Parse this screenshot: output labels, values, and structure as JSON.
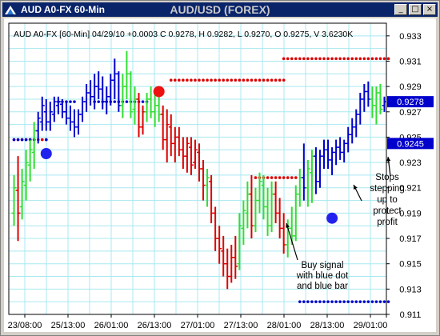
{
  "window": {
    "title": "AUD A0-FX 60-Min",
    "chart_title": "AUD/USD (FOREX)",
    "buttons": [
      "_",
      "□",
      "×"
    ]
  },
  "chart_data": {
    "type": "ohlc",
    "info_line": "AUD A0-FX [60-Min] 04/29/10  +0.0003 C 0.9278, H 0.9282, L 0.9270, O 0.9275, V 3.6230K",
    "ylim": [
      0.911,
      0.934
    ],
    "yticks": [
      "0.933",
      "0.931",
      "0.929",
      "0.927",
      "0.925",
      "0.923",
      "0.921",
      "0.919",
      "0.917",
      "0.915",
      "0.913",
      "0.911"
    ],
    "xticks": [
      "23/08:00",
      "25/13:00",
      "26/01:00",
      "26/13:00",
      "27/01:00",
      "27/13:00",
      "28/01:00",
      "28/13:00",
      "29/01:00"
    ],
    "price_labels": [
      {
        "value": 0.9278,
        "text": "0.9278",
        "color": "#0000cc"
      },
      {
        "value": 0.9245,
        "text": "0.9245",
        "color": "#0000cc"
      }
    ],
    "colors": {
      "up": "#0000cc",
      "down": "#dd0000",
      "neutral": "#33dd33",
      "stop": "#0000cc",
      "stop_short": "#dd0000",
      "grid": "#a8e8f0"
    },
    "bars": [
      [
        0.919,
        0.922,
        0.918,
        0.921,
        "n"
      ],
      [
        0.9208,
        0.9235,
        0.9168,
        0.919,
        "d"
      ],
      [
        0.9195,
        0.9225,
        0.9185,
        0.9215,
        "n"
      ],
      [
        0.9212,
        0.924,
        0.92,
        0.923,
        "n"
      ],
      [
        0.9228,
        0.9248,
        0.9215,
        0.924,
        "n"
      ],
      [
        0.9238,
        0.9262,
        0.9225,
        0.9255,
        "n"
      ],
      [
        0.9255,
        0.927,
        0.9245,
        0.9265,
        "u"
      ],
      [
        0.9262,
        0.9282,
        0.9255,
        0.9275,
        "u"
      ],
      [
        0.927,
        0.928,
        0.9255,
        0.9262,
        "u"
      ],
      [
        0.9262,
        0.9278,
        0.9255,
        0.927,
        "u"
      ],
      [
        0.9268,
        0.9282,
        0.9262,
        0.9278,
        "u"
      ],
      [
        0.9275,
        0.9282,
        0.9268,
        0.9278,
        "u"
      ],
      [
        0.9276,
        0.928,
        0.9265,
        0.927,
        "u"
      ],
      [
        0.927,
        0.9278,
        0.926,
        0.9265,
        "u"
      ],
      [
        0.9265,
        0.9275,
        0.9255,
        0.9262,
        "u"
      ],
      [
        0.9262,
        0.9272,
        0.925,
        0.9258,
        "u"
      ],
      [
        0.9258,
        0.9272,
        0.9252,
        0.9268,
        "u"
      ],
      [
        0.9268,
        0.9282,
        0.9262,
        0.9278,
        "u"
      ],
      [
        0.9278,
        0.9292,
        0.927,
        0.9285,
        "u"
      ],
      [
        0.9285,
        0.9295,
        0.9275,
        0.9282,
        "u"
      ],
      [
        0.9282,
        0.93,
        0.9272,
        0.929,
        "u"
      ],
      [
        0.929,
        0.9302,
        0.928,
        0.9288,
        "u"
      ],
      [
        0.9288,
        0.9298,
        0.9272,
        0.9278,
        "u"
      ],
      [
        0.9278,
        0.929,
        0.9268,
        0.9282,
        "u"
      ],
      [
        0.9282,
        0.93,
        0.9275,
        0.9295,
        "u"
      ],
      [
        0.9295,
        0.9312,
        0.928,
        0.93,
        "u"
      ],
      [
        0.93,
        0.9302,
        0.927,
        0.9275,
        "u"
      ],
      [
        0.9275,
        0.93,
        0.9265,
        0.929,
        "n"
      ],
      [
        0.929,
        0.9318,
        0.928,
        0.93,
        "n"
      ],
      [
        0.93,
        0.9302,
        0.9265,
        0.927,
        "n"
      ],
      [
        0.9272,
        0.929,
        0.926,
        0.928,
        "n"
      ],
      [
        0.928,
        0.9285,
        0.925,
        0.9258,
        "d"
      ],
      [
        0.9258,
        0.9275,
        0.9252,
        0.927,
        "d"
      ],
      [
        0.927,
        0.9285,
        0.9262,
        0.928,
        "n"
      ],
      [
        0.928,
        0.929,
        0.9265,
        0.927,
        "n"
      ],
      [
        0.927,
        0.9285,
        0.9258,
        0.9275,
        "n"
      ],
      [
        0.9275,
        0.9285,
        0.9262,
        0.9268,
        "n"
      ],
      [
        0.9268,
        0.9275,
        0.924,
        0.9248,
        "d"
      ],
      [
        0.9248,
        0.9272,
        0.923,
        0.926,
        "d"
      ],
      [
        0.9258,
        0.9268,
        0.9235,
        0.9245,
        "d"
      ],
      [
        0.9245,
        0.9258,
        0.923,
        0.925,
        "d"
      ],
      [
        0.925,
        0.9258,
        0.9235,
        0.924,
        "d"
      ],
      [
        0.924,
        0.925,
        0.9225,
        0.9235,
        "d"
      ],
      [
        0.9235,
        0.925,
        0.9222,
        0.9245,
        "d"
      ],
      [
        0.9242,
        0.925,
        0.922,
        0.9228,
        "d"
      ],
      [
        0.923,
        0.9248,
        0.9225,
        0.924,
        "d"
      ],
      [
        0.9238,
        0.9245,
        0.9215,
        0.9225,
        "d"
      ],
      [
        0.9225,
        0.9232,
        0.92,
        0.9212,
        "d"
      ],
      [
        0.9212,
        0.9225,
        0.9195,
        0.9218,
        "n"
      ],
      [
        0.9215,
        0.922,
        0.9182,
        0.919,
        "d"
      ],
      [
        0.919,
        0.9195,
        0.916,
        0.917,
        "d"
      ],
      [
        0.917,
        0.918,
        0.915,
        0.9162,
        "d"
      ],
      [
        0.916,
        0.9172,
        0.914,
        0.915,
        "d"
      ],
      [
        0.915,
        0.9162,
        0.913,
        0.914,
        "d"
      ],
      [
        0.914,
        0.9165,
        0.9135,
        0.9155,
        "d"
      ],
      [
        0.9155,
        0.9172,
        0.9138,
        0.9148,
        "d"
      ],
      [
        0.915,
        0.919,
        0.9145,
        0.918,
        "n"
      ],
      [
        0.9178,
        0.92,
        0.9165,
        0.9192,
        "n"
      ],
      [
        0.919,
        0.9215,
        0.9178,
        0.9205,
        "n"
      ],
      [
        0.9205,
        0.922,
        0.917,
        0.918,
        "d"
      ],
      [
        0.918,
        0.921,
        0.9175,
        0.92,
        "n"
      ],
      [
        0.92,
        0.9222,
        0.919,
        0.9215,
        "n"
      ],
      [
        0.9212,
        0.922,
        0.9185,
        0.9195,
        "n"
      ],
      [
        0.9195,
        0.921,
        0.9172,
        0.918,
        "n"
      ],
      [
        0.918,
        0.9215,
        0.9175,
        0.9205,
        "n"
      ],
      [
        0.9205,
        0.9215,
        0.9182,
        0.919,
        "d"
      ],
      [
        0.919,
        0.9202,
        0.917,
        0.9178,
        "d"
      ],
      [
        0.9178,
        0.919,
        0.9158,
        0.9165,
        "d"
      ],
      [
        0.9165,
        0.9185,
        0.9155,
        0.9178,
        "n"
      ],
      [
        0.9178,
        0.9195,
        0.9165,
        0.9172,
        "n"
      ],
      [
        0.9172,
        0.9212,
        0.9168,
        0.9205,
        "n"
      ],
      [
        0.9205,
        0.9225,
        0.9195,
        0.9218,
        "n"
      ],
      [
        0.9218,
        0.9245,
        0.92,
        0.921,
        "u"
      ],
      [
        0.921,
        0.9232,
        0.9195,
        0.9225,
        "n"
      ],
      [
        0.9222,
        0.924,
        0.9198,
        0.9235,
        "n"
      ],
      [
        0.9235,
        0.9242,
        0.9205,
        0.9215,
        "u"
      ],
      [
        0.9215,
        0.924,
        0.921,
        0.9235,
        "u"
      ],
      [
        0.9235,
        0.9248,
        0.9225,
        0.924,
        "u"
      ],
      [
        0.924,
        0.9248,
        0.9225,
        0.9232,
        "u"
      ],
      [
        0.9232,
        0.9242,
        0.922,
        0.9238,
        "u"
      ],
      [
        0.9238,
        0.9248,
        0.9228,
        0.9242,
        "u"
      ],
      [
        0.9242,
        0.925,
        0.9232,
        0.9238,
        "u"
      ],
      [
        0.9238,
        0.9248,
        0.923,
        0.9245,
        "u"
      ],
      [
        0.9245,
        0.9258,
        0.9238,
        0.9252,
        "u"
      ],
      [
        0.9252,
        0.9265,
        0.9245,
        0.9258,
        "u"
      ],
      [
        0.9258,
        0.9272,
        0.925,
        0.9268,
        "u"
      ],
      [
        0.9268,
        0.9285,
        0.926,
        0.928,
        "u"
      ],
      [
        0.928,
        0.9292,
        0.927,
        0.9286,
        "u"
      ],
      [
        0.9286,
        0.9294,
        0.9274,
        0.928,
        "u"
      ],
      [
        0.928,
        0.929,
        0.9265,
        0.9275,
        "n"
      ],
      [
        0.9275,
        0.929,
        0.926,
        0.9285,
        "n"
      ],
      [
        0.9285,
        0.9292,
        0.9268,
        0.9272,
        "n"
      ],
      [
        0.9275,
        0.9282,
        0.927,
        0.9278,
        "u"
      ]
    ],
    "stops_long_a": [
      [
        0,
        0.9248
      ],
      [
        1,
        0.9248
      ],
      [
        2,
        0.9248
      ],
      [
        3,
        0.9248
      ],
      [
        4,
        0.9248
      ],
      [
        5,
        0.9248
      ],
      [
        8,
        0.9248
      ],
      [
        11,
        0.9278
      ],
      [
        12,
        0.9278
      ],
      [
        13,
        0.9278
      ],
      [
        14,
        0.9278
      ],
      [
        15,
        0.9278
      ],
      [
        20,
        0.9278
      ],
      [
        21,
        0.9278
      ],
      [
        22,
        0.9278
      ],
      [
        23,
        0.9278
      ],
      [
        24,
        0.9278
      ],
      [
        25,
        0.9278
      ],
      [
        26,
        0.9278
      ],
      [
        27,
        0.9278
      ],
      [
        28,
        0.9278
      ],
      [
        29,
        0.9278
      ],
      [
        30,
        0.9278
      ],
      [
        31,
        0.9278
      ],
      [
        32,
        0.9278
      ],
      [
        33,
        0.9278
      ]
    ],
    "stops_short_a": [
      [
        0,
        0.9248
      ],
      [
        1,
        0.9248
      ],
      [
        2,
        0.9248
      ],
      [
        3,
        0.9248
      ],
      [
        4,
        0.9248
      ],
      [
        5,
        0.9248
      ],
      [
        6,
        0.9248
      ],
      [
        7,
        0.9248
      ],
      [
        8,
        0.9248
      ],
      [
        39,
        0.9295
      ],
      [
        40,
        0.9295
      ],
      [
        41,
        0.9295
      ],
      [
        42,
        0.9295
      ],
      [
        43,
        0.9295
      ],
      [
        44,
        0.9295
      ],
      [
        45,
        0.9295
      ],
      [
        46,
        0.9295
      ],
      [
        47,
        0.9295
      ],
      [
        48,
        0.9295
      ],
      [
        49,
        0.9295
      ],
      [
        50,
        0.9295
      ],
      [
        51,
        0.9295
      ],
      [
        52,
        0.9295
      ],
      [
        53,
        0.9295
      ],
      [
        54,
        0.9295
      ],
      [
        55,
        0.9295
      ],
      [
        56,
        0.9295
      ],
      [
        57,
        0.9295
      ],
      [
        58,
        0.9295
      ],
      [
        59,
        0.9295
      ],
      [
        60,
        0.9295
      ],
      [
        61,
        0.9295
      ],
      [
        62,
        0.9295
      ],
      [
        63,
        0.9295
      ],
      [
        64,
        0.9295
      ],
      [
        65,
        0.9295
      ],
      [
        66,
        0.9295
      ],
      [
        67,
        0.9295
      ]
    ],
    "stops_short_b": [
      [
        67,
        0.9312
      ],
      [
        68,
        0.9312
      ],
      [
        69,
        0.9312
      ],
      [
        70,
        0.9312
      ],
      [
        71,
        0.9312
      ],
      [
        72,
        0.9312
      ],
      [
        73,
        0.9312
      ],
      [
        74,
        0.9312
      ],
      [
        75,
        0.9312
      ],
      [
        76,
        0.9312
      ],
      [
        77,
        0.9312
      ],
      [
        78,
        0.9312
      ],
      [
        79,
        0.9312
      ],
      [
        80,
        0.9312
      ],
      [
        81,
        0.9312
      ],
      [
        82,
        0.9312
      ],
      [
        83,
        0.9312
      ],
      [
        84,
        0.9312
      ],
      [
        85,
        0.9312
      ],
      [
        86,
        0.9312
      ],
      [
        87,
        0.9312
      ],
      [
        88,
        0.9312
      ],
      [
        89,
        0.9312
      ],
      [
        90,
        0.9312
      ],
      [
        91,
        0.9312
      ],
      [
        92,
        0.9312
      ],
      [
        93,
        0.9312
      ]
    ],
    "stops_mid": [
      [
        60,
        0.9218
      ],
      [
        61,
        0.9218
      ],
      [
        62,
        0.9218
      ],
      [
        63,
        0.9218
      ],
      [
        64,
        0.9218
      ],
      [
        65,
        0.9218
      ],
      [
        66,
        0.9218
      ],
      [
        67,
        0.9218
      ],
      [
        68,
        0.9218
      ],
      [
        69,
        0.9218
      ],
      [
        70,
        0.9218
      ]
    ],
    "stops_buy": [
      [
        71,
        0.912
      ],
      [
        72,
        0.912
      ],
      [
        73,
        0.912
      ],
      [
        74,
        0.912
      ],
      [
        75,
        0.912
      ],
      [
        76,
        0.912
      ],
      [
        77,
        0.912
      ],
      [
        78,
        0.912
      ],
      [
        79,
        0.912
      ],
      [
        80,
        0.912
      ],
      [
        81,
        0.912
      ],
      [
        82,
        0.912
      ],
      [
        83,
        0.912
      ],
      [
        84,
        0.912
      ],
      [
        85,
        0.912
      ],
      [
        86,
        0.912
      ],
      [
        87,
        0.912
      ],
      [
        88,
        0.912
      ],
      [
        89,
        0.912
      ],
      [
        90,
        0.912
      ],
      [
        91,
        0.912
      ],
      [
        92,
        0.912
      ],
      [
        93,
        0.912
      ]
    ],
    "signals": [
      {
        "i": 8,
        "y": 0.9237,
        "color": "#2222ee"
      },
      {
        "i": 36,
        "y": 0.9286,
        "color": "#ee1111"
      },
      {
        "i": 79,
        "y": 0.9186,
        "color": "#2222ee"
      }
    ],
    "annotations": [
      {
        "lines": [
          "Buy signal",
          "with blue dot",
          "and blue bar"
        ]
      },
      {
        "lines": [
          "Stops",
          "stepping",
          "up to",
          "protect",
          "profit"
        ]
      }
    ]
  }
}
